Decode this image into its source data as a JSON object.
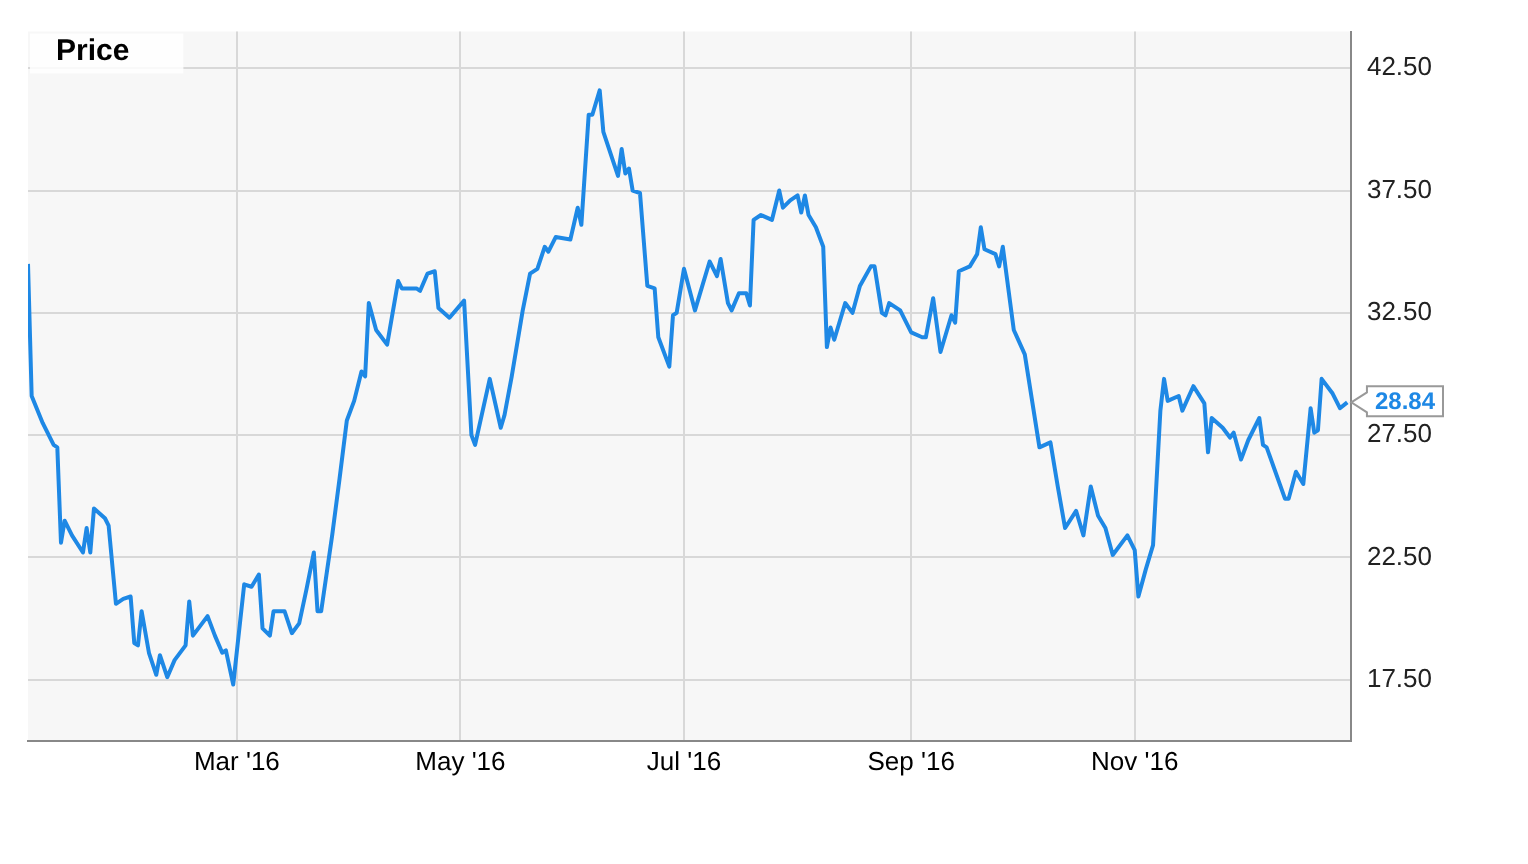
{
  "chart_data": {
    "type": "line",
    "title": "Price",
    "x": [
      "2016-01-04",
      "2016-01-05",
      "2016-01-08",
      "2016-01-11",
      "2016-01-12",
      "2016-01-13",
      "2016-01-14",
      "2016-01-16",
      "2016-01-19",
      "2016-01-20",
      "2016-01-21",
      "2016-01-22",
      "2016-01-25",
      "2016-01-26",
      "2016-01-28",
      "2016-01-30",
      "2016-02-01",
      "2016-02-02",
      "2016-02-03",
      "2016-02-04",
      "2016-02-06",
      "2016-02-08",
      "2016-02-09",
      "2016-02-11",
      "2016-02-13",
      "2016-02-16",
      "2016-02-17",
      "2016-02-18",
      "2016-02-22",
      "2016-02-24",
      "2016-02-26",
      "2016-02-27",
      "2016-02-29",
      "2016-03-03",
      "2016-03-05",
      "2016-03-07",
      "2016-03-08",
      "2016-03-10",
      "2016-03-11",
      "2016-03-14",
      "2016-03-16",
      "2016-03-18",
      "2016-03-20",
      "2016-03-22",
      "2016-03-23",
      "2016-03-24",
      "2016-03-27",
      "2016-03-29",
      "2016-03-31",
      "2016-04-02",
      "2016-04-04",
      "2016-04-05",
      "2016-04-06",
      "2016-04-08",
      "2016-04-11",
      "2016-04-14",
      "2016-04-15",
      "2016-04-19",
      "2016-04-20",
      "2016-04-22",
      "2016-04-24",
      "2016-04-25",
      "2016-04-28",
      "2016-05-02",
      "2016-05-04",
      "2016-05-05",
      "2016-05-09",
      "2016-05-12",
      "2016-05-13",
      "2016-05-15",
      "2016-05-18",
      "2016-05-20",
      "2016-05-22",
      "2016-05-24",
      "2016-05-25",
      "2016-05-27",
      "2016-05-31",
      "2016-06-02",
      "2016-06-03",
      "2016-06-05",
      "2016-06-06",
      "2016-06-08",
      "2016-06-09",
      "2016-06-13",
      "2016-06-14",
      "2016-06-15",
      "2016-06-16",
      "2016-06-17",
      "2016-06-19",
      "2016-06-21",
      "2016-06-23",
      "2016-06-24",
      "2016-06-27",
      "2016-06-28",
      "2016-06-29",
      "2016-07-01",
      "2016-07-04",
      "2016-07-06",
      "2016-07-08",
      "2016-07-10",
      "2016-07-11",
      "2016-07-13",
      "2016-07-14",
      "2016-07-16",
      "2016-07-18",
      "2016-07-19",
      "2016-07-20",
      "2016-07-22",
      "2016-07-25",
      "2016-07-27",
      "2016-07-28",
      "2016-07-30",
      "2016-08-01",
      "2016-08-02",
      "2016-08-03",
      "2016-08-04",
      "2016-08-06",
      "2016-08-08",
      "2016-08-09",
      "2016-08-10",
      "2016-08-11",
      "2016-08-14",
      "2016-08-16",
      "2016-08-18",
      "2016-08-21",
      "2016-08-22",
      "2016-08-24",
      "2016-08-25",
      "2016-08-26",
      "2016-08-29",
      "2016-09-01",
      "2016-09-04",
      "2016-09-05",
      "2016-09-07",
      "2016-09-09",
      "2016-09-12",
      "2016-09-13",
      "2016-09-14",
      "2016-09-17",
      "2016-09-19",
      "2016-09-20",
      "2016-09-21",
      "2016-09-24",
      "2016-09-25",
      "2016-09-26",
      "2016-09-29",
      "2016-10-02",
      "2016-10-04",
      "2016-10-06",
      "2016-10-09",
      "2016-10-11",
      "2016-10-13",
      "2016-10-16",
      "2016-10-18",
      "2016-10-20",
      "2016-10-22",
      "2016-10-24",
      "2016-10-26",
      "2016-10-30",
      "2016-11-01",
      "2016-11-02",
      "2016-11-04",
      "2016-11-06",
      "2016-11-08",
      "2016-11-09",
      "2016-11-10",
      "2016-11-13",
      "2016-11-14",
      "2016-11-17",
      "2016-11-20",
      "2016-11-21",
      "2016-11-22",
      "2016-11-25",
      "2016-11-27",
      "2016-11-28",
      "2016-11-30",
      "2016-12-02",
      "2016-12-05",
      "2016-12-06",
      "2016-12-07",
      "2016-12-12",
      "2016-12-13",
      "2016-12-15",
      "2016-12-17",
      "2016-12-19",
      "2016-12-20",
      "2016-12-21",
      "2016-12-22",
      "2016-12-25",
      "2016-12-27",
      "2016-12-29"
    ],
    "series": [
      {
        "color": "#1e88e5",
        "values": [
          34.5,
          29.1,
          28.0,
          27.1,
          27.0,
          23.1,
          24.0,
          23.4,
          22.7,
          23.7,
          22.7,
          24.5,
          24.1,
          23.8,
          20.6,
          20.8,
          20.9,
          19.0,
          18.9,
          20.3,
          18.6,
          17.7,
          18.5,
          17.6,
          18.3,
          18.9,
          20.7,
          19.3,
          20.1,
          19.3,
          18.6,
          18.7,
          17.3,
          21.4,
          21.3,
          21.8,
          19.6,
          19.3,
          20.3,
          20.3,
          19.4,
          19.8,
          21.2,
          22.7,
          20.3,
          20.3,
          23.4,
          25.7,
          28.1,
          28.9,
          30.1,
          29.9,
          32.9,
          31.8,
          31.2,
          33.8,
          33.5,
          33.5,
          33.4,
          34.1,
          34.2,
          32.7,
          32.3,
          33.0,
          27.5,
          27.1,
          29.8,
          27.8,
          28.3,
          29.9,
          32.6,
          34.1,
          34.3,
          35.2,
          35.0,
          35.6,
          35.5,
          36.8,
          36.1,
          40.6,
          40.6,
          41.6,
          39.9,
          38.1,
          39.2,
          38.2,
          38.4,
          37.5,
          37.4,
          33.6,
          33.5,
          31.5,
          30.3,
          32.4,
          32.5,
          34.3,
          32.6,
          33.6,
          34.6,
          34.0,
          34.7,
          32.9,
          32.6,
          33.3,
          33.3,
          32.8,
          36.3,
          36.5,
          36.3,
          37.5,
          36.8,
          37.1,
          37.3,
          36.6,
          37.3,
          36.5,
          36.0,
          35.2,
          31.1,
          31.9,
          31.4,
          32.9,
          32.5,
          33.6,
          34.4,
          34.4,
          32.5,
          32.4,
          32.9,
          32.6,
          31.7,
          31.5,
          31.5,
          33.1,
          30.9,
          32.4,
          32.1,
          34.2,
          34.4,
          34.9,
          36.0,
          35.1,
          34.9,
          34.4,
          35.2,
          31.8,
          30.8,
          28.9,
          27.0,
          27.2,
          25.4,
          23.7,
          24.4,
          23.4,
          25.4,
          24.2,
          23.7,
          22.6,
          23.4,
          22.8,
          20.9,
          22.0,
          23.0,
          28.5,
          29.8,
          28.9,
          29.1,
          28.5,
          29.5,
          28.8,
          26.8,
          28.2,
          27.8,
          27.4,
          27.6,
          26.5,
          27.3,
          28.2,
          27.1,
          27.0,
          24.9,
          24.9,
          26.0,
          25.5,
          28.6,
          27.6,
          27.7,
          29.8,
          29.2,
          28.6,
          28.84
        ]
      }
    ],
    "xlim": [
      "2016-01-04",
      "2016-12-30"
    ],
    "xticks": [
      {
        "value": "2016-03-01",
        "label": "Mar '16"
      },
      {
        "value": "2016-05-01",
        "label": "May '16"
      },
      {
        "value": "2016-07-01",
        "label": "Jul '16"
      },
      {
        "value": "2016-09-01",
        "label": "Sep '16"
      },
      {
        "value": "2016-11-01",
        "label": "Nov '16"
      }
    ],
    "ylim": [
      15,
      44
    ],
    "yticks": [
      {
        "value": 17.5,
        "label": "17.50"
      },
      {
        "value": 22.5,
        "label": "22.50"
      },
      {
        "value": 27.5,
        "label": "27.50"
      },
      {
        "value": 32.5,
        "label": "32.50"
      },
      {
        "value": 37.5,
        "label": "37.50"
      },
      {
        "value": 42.5,
        "label": "42.50"
      }
    ],
    "annotations": [
      {
        "text": "28.84",
        "x": "2016-12-29",
        "y": 28.84
      }
    ],
    "grid": true,
    "legend": false,
    "marker": "none",
    "line_style": "solid"
  }
}
